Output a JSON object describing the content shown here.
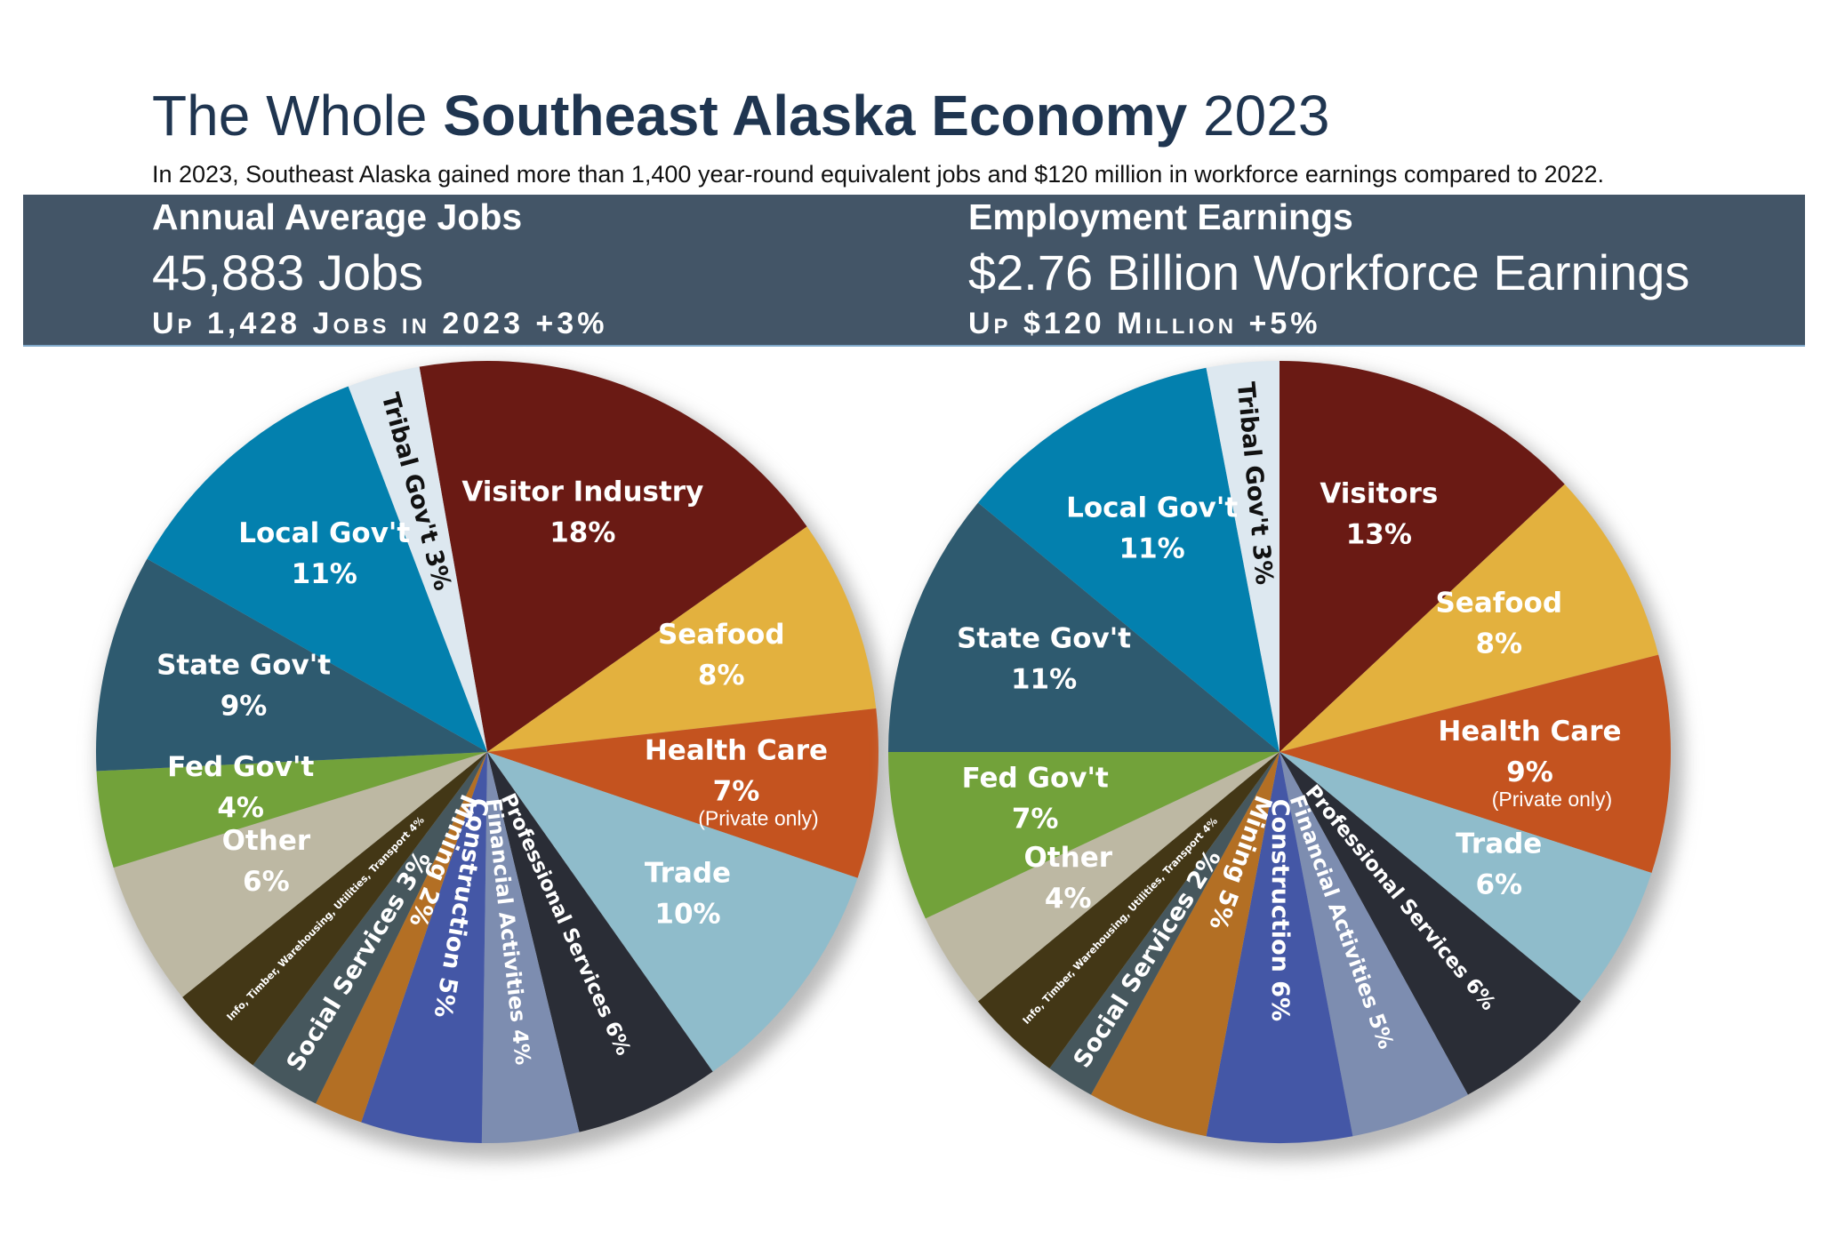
{
  "header": {
    "title_parts": [
      "The Whole ",
      "Southeast Alaska Economy",
      " 2023"
    ],
    "subtitle": "In 2023, Southeast Alaska gained more than 1,400 year-round equivalent jobs and $120 million in workforce earnings compared to 2022."
  },
  "chart_data": [
    {
      "type": "pie",
      "title": "Annual Average Jobs",
      "subtitle": "45,883 Jobs",
      "change": "Up 1,428 Jobs in 2023 +3%",
      "categories": [
        "Visitor Industry",
        "Seafood",
        "Health Care",
        "Trade",
        "Professional Services",
        "Financial Activities",
        "Construction",
        "Mining",
        "Social Services",
        "Info, Timber, Warehousing, Utilities, Transport",
        "Other",
        "Fed Gov't",
        "State Gov't",
        "Local Gov't",
        "Tribal Gov't"
      ],
      "values": [
        18,
        8,
        7,
        10,
        6,
        4,
        5,
        2,
        3,
        4,
        6,
        4,
        9,
        11,
        3
      ],
      "value_labels": [
        "18%",
        "8%",
        "7%",
        "10%",
        "6%",
        "4%",
        "5%",
        "2%",
        "3%",
        "4%",
        "6%",
        "4%",
        "9%",
        "11%",
        "3%"
      ],
      "colors": [
        "#6a1a14",
        "#e3b13e",
        "#c4531f",
        "#8fbccb",
        "#2a2d36",
        "#7d8db0",
        "#4457a6",
        "#b36f24",
        "#46575d",
        "#433716",
        "#bdb8a3",
        "#72a23a",
        "#2e5a6f",
        "#0380ae",
        "#dde8f0"
      ],
      "annotation": {
        "category": "Health Care",
        "text": "(Private only)"
      }
    },
    {
      "type": "pie",
      "title": "Employment Earnings",
      "subtitle": "$2.76 Billion Workforce Earnings",
      "change": "Up $120 Million +5%",
      "categories": [
        "Visitors",
        "Seafood",
        "Health Care",
        "Trade",
        "Professional Services",
        "Financial Activities",
        "Construction",
        "Mining",
        "Social Services",
        "Info, Timber, Warehousing, Utilities, Transport",
        "Other",
        "Fed Gov't",
        "State Gov't",
        "Local Gov't",
        "Tribal Gov't"
      ],
      "values": [
        13,
        8,
        9,
        6,
        6,
        5,
        6,
        5,
        2,
        4,
        4,
        7,
        11,
        11,
        3
      ],
      "value_labels": [
        "13%",
        "8%",
        "9%",
        "6%",
        "6%",
        "5%",
        "6%",
        "5%",
        "2%",
        "4%",
        "4%",
        "7%",
        "11%",
        "11%",
        "3%"
      ],
      "colors": [
        "#6a1a14",
        "#e3b13e",
        "#c4531f",
        "#8fbccb",
        "#2a2d36",
        "#7d8db0",
        "#4457a6",
        "#b36f24",
        "#46575d",
        "#433716",
        "#bdb8a3",
        "#72a23a",
        "#2e5a6f",
        "#0380ae",
        "#dde8f0"
      ],
      "annotation": {
        "category": "Health Care",
        "text": "(Private only)"
      }
    }
  ]
}
